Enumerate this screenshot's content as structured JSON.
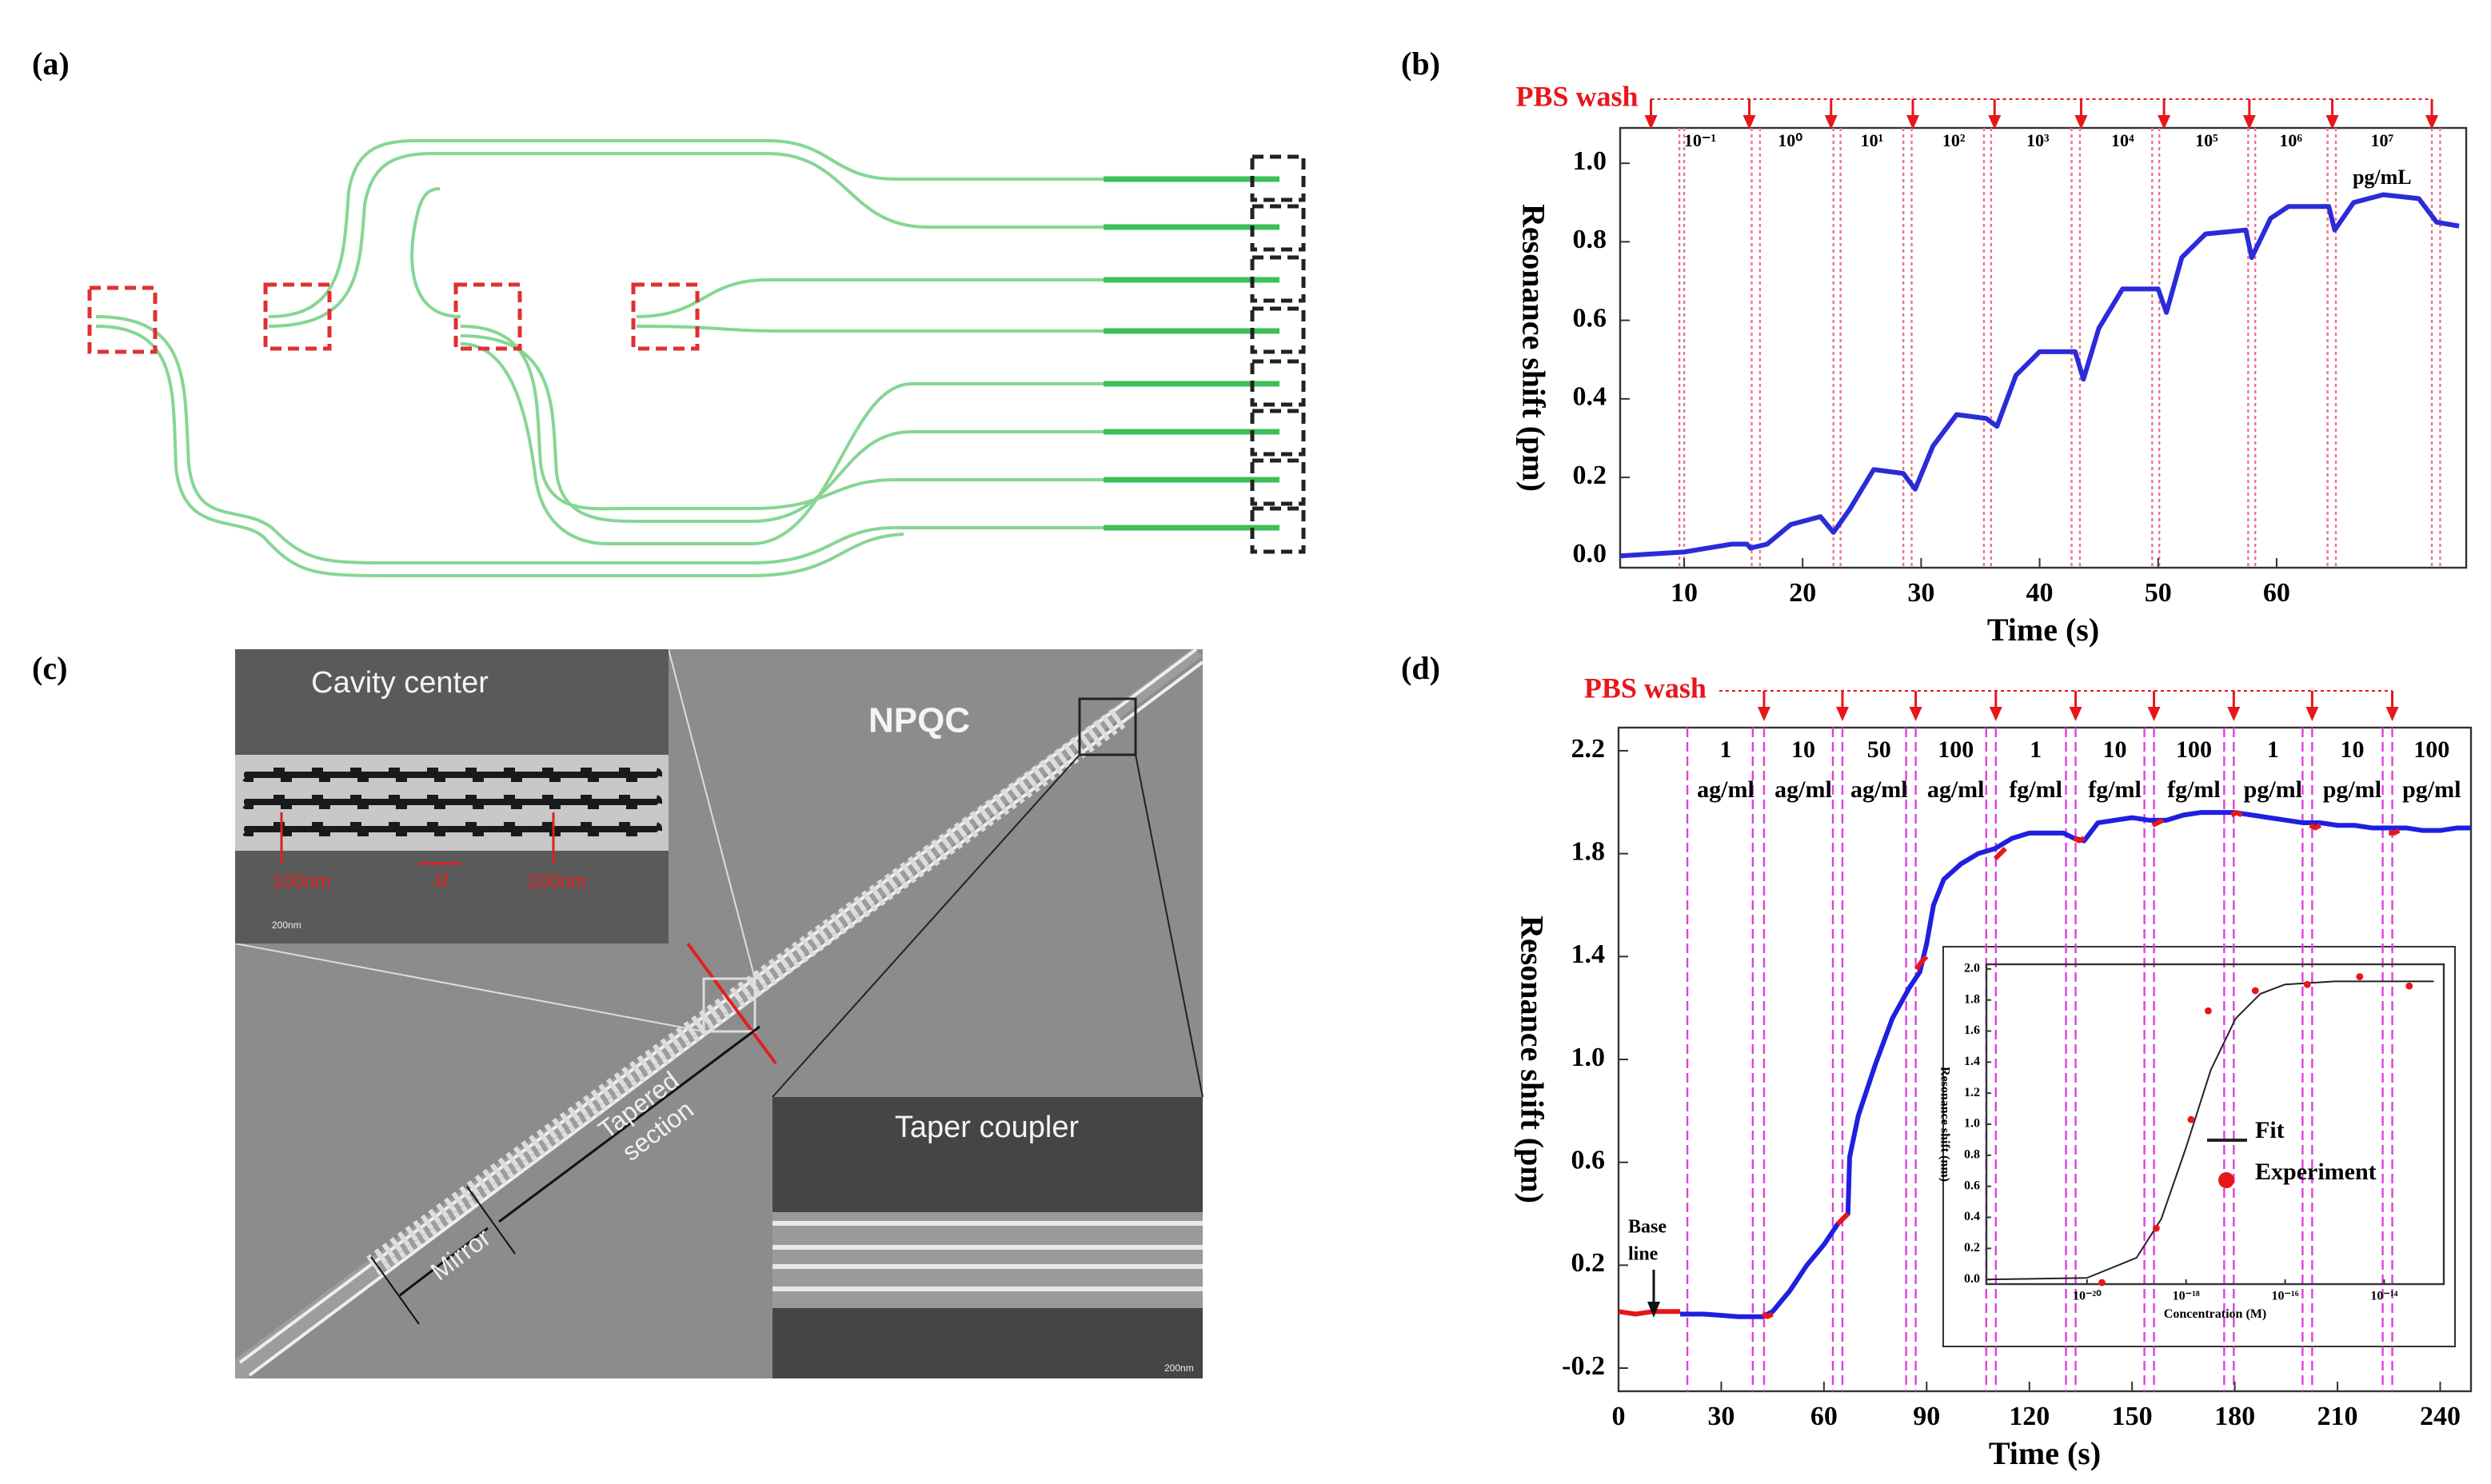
{
  "panels": [
    "(a)",
    "(b)",
    "(c)",
    "(d)"
  ],
  "sem": {
    "cavity_title": "Cavity center",
    "npqc": "NPQC",
    "taper_title": "Taper coupler",
    "hole_width": "100nm",
    "period": "a",
    "hole_gap": "200nm",
    "scale_top": "200nm",
    "scale_bottom": "200nm",
    "tapered": [
      "Tapered",
      "section"
    ],
    "mirror": "Mirror"
  },
  "chart_data": [
    {
      "type": "line",
      "xlabel": "Time (s)",
      "ylabel": "Resonance shift (pm)",
      "xlim": [
        4.6,
        76
      ],
      "ylim": [
        -0.03,
        1.09
      ],
      "xticks": [
        10,
        20,
        30,
        40,
        50,
        60
      ],
      "yticks": [
        {
          "value": 0,
          "label": "0.0"
        },
        0.2,
        0.4,
        0.6,
        0.8,
        {
          "value": 1,
          "label": "1.0"
        }
      ],
      "series": [
        {
          "color": "#2b2bd9",
          "x": [
            4.6,
            10,
            12,
            14,
            15.3,
            15.6,
            17,
            19,
            21.5,
            22.6,
            24,
            26,
            28.5,
            29.5,
            31,
            33,
            35.5,
            36.4,
            38,
            40,
            43,
            43.7,
            45,
            47,
            50,
            50.7,
            52,
            54,
            57.4,
            57.9,
            59.5,
            61,
            64.4,
            64.9,
            66.5,
            69,
            72,
            73.5,
            75.4
          ],
          "values": [
            0.0,
            0.01,
            0.02,
            0.03,
            0.03,
            0.02,
            0.03,
            0.08,
            0.1,
            0.06,
            0.12,
            0.22,
            0.21,
            0.17,
            0.28,
            0.36,
            0.35,
            0.33,
            0.46,
            0.52,
            0.52,
            0.45,
            0.58,
            0.68,
            0.68,
            0.62,
            0.76,
            0.82,
            0.83,
            0.76,
            0.86,
            0.89,
            0.89,
            0.83,
            0.9,
            0.92,
            0.91,
            0.85,
            0.84
          ]
        }
      ],
      "wash_label": "PBS wash",
      "wash_color": "#e8161b",
      "wash_times": [
        7.2,
        15.5,
        22.4,
        29.3,
        36.2,
        43.5,
        50.5,
        57.7,
        64.7,
        73.1
      ],
      "vline_color": "#f07090",
      "vlines": [
        9.6,
        10,
        15.7,
        16.4,
        22.6,
        23.2,
        28.5,
        29.2,
        35.3,
        35.9,
        42.7,
        43.4,
        49.5,
        50.1,
        57.6,
        58.2,
        64.3,
        65,
        73.1,
        73.8
      ],
      "concentrations": [
        "10⁻¹",
        "10⁰",
        "10¹",
        "10²",
        "10³",
        "10⁴",
        "10⁵",
        "10⁶",
        "10⁷"
      ],
      "unit": "pg/mL"
    },
    {
      "type": "line",
      "xlabel": "Time (s)",
      "ylabel": "Resonance shift (pm)",
      "xlim": [
        0,
        249
      ],
      "ylim": [
        -0.29,
        2.29
      ],
      "xticks": [
        0,
        30,
        60,
        90,
        120,
        150,
        180,
        210,
        240
      ],
      "yticks": [
        -0.2,
        0.2,
        0.6,
        {
          "value": 1,
          "label": "1.0"
        },
        1.4,
        1.8,
        2.2
      ],
      "series": [
        {
          "color": "#1f1fe0",
          "x": [
            18,
            25,
            35,
            42,
            45,
            50,
            55,
            60,
            64,
            67,
            67.5,
            70,
            75,
            80,
            85,
            88,
            90,
            92,
            95,
            100,
            105,
            110,
            115,
            120,
            125,
            130,
            133,
            136,
            140,
            145,
            150,
            155,
            160,
            165,
            170,
            175,
            180,
            185,
            190,
            195,
            200,
            205,
            210,
            215,
            220,
            225,
            230,
            235,
            240,
            245,
            249
          ],
          "values": [
            0.01,
            0.01,
            0.0,
            0.0,
            0.02,
            0.1,
            0.2,
            0.28,
            0.36,
            0.4,
            0.62,
            0.78,
            0.98,
            1.16,
            1.28,
            1.34,
            1.45,
            1.6,
            1.7,
            1.76,
            1.8,
            1.82,
            1.86,
            1.88,
            1.88,
            1.88,
            1.86,
            1.85,
            1.92,
            1.93,
            1.94,
            1.93,
            1.93,
            1.95,
            1.96,
            1.96,
            1.96,
            1.95,
            1.94,
            1.93,
            1.92,
            1.92,
            1.91,
            1.91,
            1.9,
            1.9,
            1.9,
            1.89,
            1.89,
            1.9,
            1.9
          ]
        },
        {
          "color": "#e8161b",
          "x": [
            0,
            5,
            10,
            15,
            18,
            null,
            42,
            43.5,
            45,
            null,
            64,
            65.5,
            67,
            null,
            87,
            88.5,
            90,
            null,
            110,
            111.5,
            113,
            null,
            133,
            134.5,
            136,
            null,
            156,
            157.5,
            159,
            null,
            179,
            180.5,
            182,
            null,
            202,
            203.5,
            205,
            null,
            225,
            226.5,
            228
          ],
          "values": [
            0.02,
            0.01,
            0.02,
            0.02,
            0.02,
            null,
            0.01,
            0.0,
            0.01,
            null,
            0.36,
            0.38,
            0.4,
            null,
            1.35,
            1.38,
            1.4,
            null,
            1.78,
            1.8,
            1.82,
            null,
            1.86,
            1.85,
            1.86,
            null,
            1.91,
            1.92,
            1.93,
            null,
            1.95,
            1.96,
            1.95,
            null,
            1.91,
            1.9,
            1.91,
            null,
            1.88,
            1.88,
            1.89
          ]
        }
      ],
      "wash_label": "PBS wash",
      "wash_color": "#e8161b",
      "wash_times": [
        42.5,
        65.4,
        86.8,
        110.2,
        133.5,
        156.4,
        179.7,
        202.6,
        226
      ],
      "vline_color": "#e040e0",
      "vlines": [
        20.1,
        39.2,
        42.5,
        62.6,
        65.4,
        84,
        86.8,
        107.4,
        110.2,
        130.7,
        133.5,
        153.6,
        156.4,
        176.9,
        179.7,
        199.8,
        202.6,
        223.2,
        226
      ],
      "concentrations": [
        "1",
        "10",
        "50",
        "100",
        "1",
        "10",
        "100",
        "1",
        "10",
        "100"
      ],
      "units": [
        "ag/ml",
        "ag/ml",
        "ag/ml",
        "ag/ml",
        "fg/ml",
        "fg/ml",
        "fg/ml",
        "pg/ml",
        "pg/ml",
        "pg/ml"
      ],
      "baseline_label": [
        "Base",
        "line"
      ]
    },
    {
      "type": "scatter",
      "xlabel": "Concentration (M)",
      "ylabel": "Resonance shift (nm)",
      "xlog": true,
      "xlim": [
        9.3e-23,
        1.6e-13
      ],
      "ylim": [
        -0.03,
        2.03
      ],
      "xticks": [
        {
          "value": 1e-20,
          "label": "10⁻²⁰"
        },
        {
          "value": 1e-18,
          "label": "10⁻¹⁸"
        },
        {
          "value": 1e-16,
          "label": "10⁻¹⁶"
        },
        {
          "value": 1e-14,
          "label": "10⁻¹⁴"
        }
      ],
      "yticks": [
        {
          "value": 0,
          "label": "0.0"
        },
        0.2,
        0.4,
        0.6,
        0.8,
        {
          "value": 1,
          "label": "1.0"
        },
        1.2,
        1.4,
        1.6,
        1.8,
        {
          "value": 2,
          "label": "2.0"
        }
      ],
      "series": [
        {
          "name": "Fit",
          "type": "line",
          "color": "#222",
          "x": [
            1e-22,
            1e-20,
            1e-19,
            3.16e-19,
            1e-18,
            3.16e-18,
            1e-17,
            3.16e-17,
            1e-16,
            1e-15,
            1e-13
          ],
          "values": [
            0.0,
            0.01,
            0.14,
            0.39,
            0.85,
            1.35,
            1.68,
            1.84,
            1.9,
            1.92,
            1.92
          ]
        },
        {
          "name": "Experiment",
          "type": "points",
          "color": "#e8161b",
          "x": [
            2e-20,
            2.5e-19,
            1.26e-18,
            2.8e-18,
            2.5e-17,
            2.8e-16,
            3.2e-15,
            3.2e-14
          ],
          "values": [
            -0.02,
            0.33,
            1.03,
            1.73,
            1.86,
            1.9,
            1.95,
            1.89
          ]
        }
      ]
    }
  ]
}
